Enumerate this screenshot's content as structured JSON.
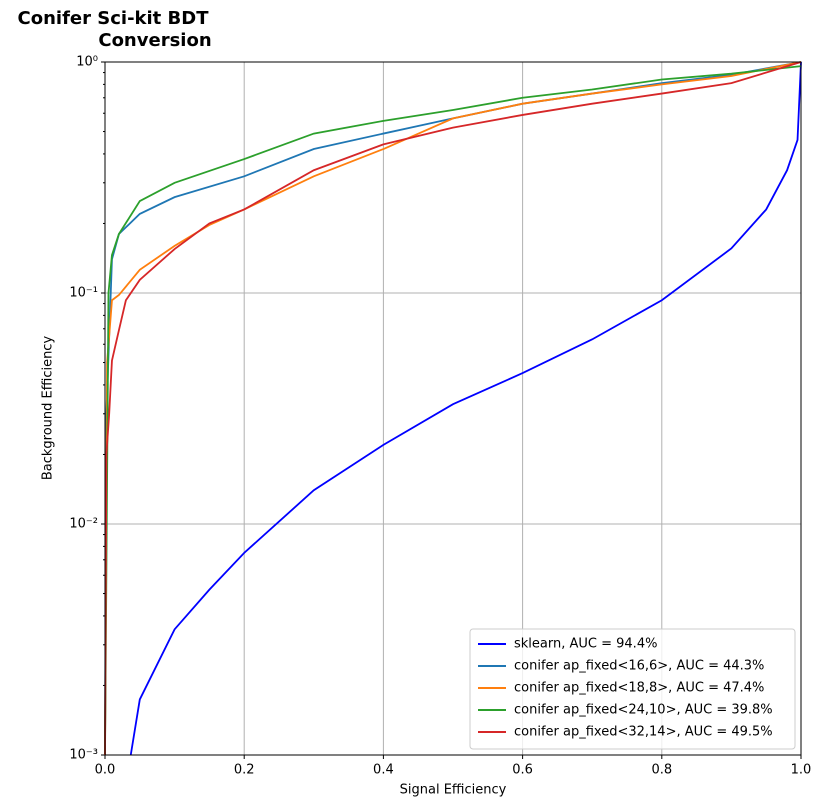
{
  "chart_data": {
    "type": "line",
    "title": [
      "Conifer Sci-kit BDT",
      "Conversion"
    ],
    "xlabel": "Signal Efficiency",
    "ylabel": "Background Efficiency",
    "yscale": "log",
    "grid": true,
    "legend": "lower right",
    "xlim": [
      0,
      1
    ],
    "ylim": [
      0.001,
      1
    ],
    "xticks": [
      {
        "value": 0,
        "label": "0.0"
      },
      {
        "value": 0.2,
        "label": "0.2"
      },
      {
        "value": 0.4,
        "label": "0.4"
      },
      {
        "value": 0.6,
        "label": "0.6"
      },
      {
        "value": 0.8,
        "label": "0.8"
      },
      {
        "value": 1,
        "label": "1.0"
      }
    ],
    "yticks": [
      {
        "value": 0.001,
        "label": "10⁻³"
      },
      {
        "value": 0.01,
        "label": "10⁻²"
      },
      {
        "value": 0.1,
        "label": "10⁻¹"
      },
      {
        "value": 1,
        "label": "10⁰"
      }
    ],
    "series": [
      {
        "name": "sklearn, AUC = 94.4%",
        "color": "#0000ff",
        "x": [
          0.037,
          0.05,
          0.1,
          0.15,
          0.2,
          0.3,
          0.4,
          0.5,
          0.6,
          0.7,
          0.8,
          0.9,
          0.95,
          0.98,
          0.995,
          1
        ],
        "values": [
          0.001,
          0.00174,
          0.0035,
          0.0052,
          0.0075,
          0.014,
          0.022,
          0.033,
          0.045,
          0.063,
          0.093,
          0.156,
          0.23,
          0.34,
          0.46,
          1
        ]
      },
      {
        "name": "conifer ap_fixed<16,6>, AUC = 44.3%",
        "color": "#1f77b4",
        "x": [
          0,
          0.002,
          0.01,
          0.02,
          0.05,
          0.1,
          0.2,
          0.3,
          0.4,
          0.5,
          0.6,
          0.7,
          0.8,
          0.9,
          1
        ],
        "values": [
          0.001,
          0.03,
          0.14,
          0.18,
          0.22,
          0.26,
          0.32,
          0.42,
          0.49,
          0.57,
          0.66,
          0.73,
          0.81,
          0.88,
          1
        ]
      },
      {
        "name": "conifer ap_fixed<18,8>, AUC = 47.4%",
        "color": "#ff7f0e",
        "x": [
          0,
          0.003,
          0.01,
          0.02,
          0.05,
          0.1,
          0.15,
          0.2,
          0.3,
          0.4,
          0.5,
          0.6,
          0.7,
          0.8,
          0.9,
          1
        ],
        "values": [
          0.001,
          0.05,
          0.093,
          0.098,
          0.126,
          0.16,
          0.197,
          0.23,
          0.32,
          0.42,
          0.57,
          0.66,
          0.73,
          0.8,
          0.87,
          1
        ]
      },
      {
        "name": "conifer ap_fixed<24,10>, AUC = 39.8%",
        "color": "#2ca02c",
        "x": [
          0,
          0.005,
          0.01,
          0.02,
          0.05,
          0.1,
          0.2,
          0.3,
          0.4,
          0.5,
          0.6,
          0.7,
          0.8,
          0.9,
          1
        ],
        "values": [
          0.001,
          0.1,
          0.146,
          0.18,
          0.25,
          0.3,
          0.38,
          0.49,
          0.556,
          0.62,
          0.7,
          0.76,
          0.84,
          0.89,
          0.96
        ]
      },
      {
        "name": "conifer ap_fixed<32,14>, AUC = 49.5%",
        "color": "#d62728",
        "x": [
          0,
          0.002,
          0.006,
          0.01,
          0.02,
          0.03,
          0.05,
          0.1,
          0.15,
          0.2,
          0.3,
          0.4,
          0.5,
          0.6,
          0.7,
          0.8,
          0.9,
          1
        ],
        "values": [
          0.001,
          0.02,
          0.03,
          0.051,
          0.069,
          0.093,
          0.114,
          0.155,
          0.2,
          0.23,
          0.34,
          0.44,
          0.52,
          0.59,
          0.66,
          0.73,
          0.81,
          1
        ]
      }
    ]
  }
}
